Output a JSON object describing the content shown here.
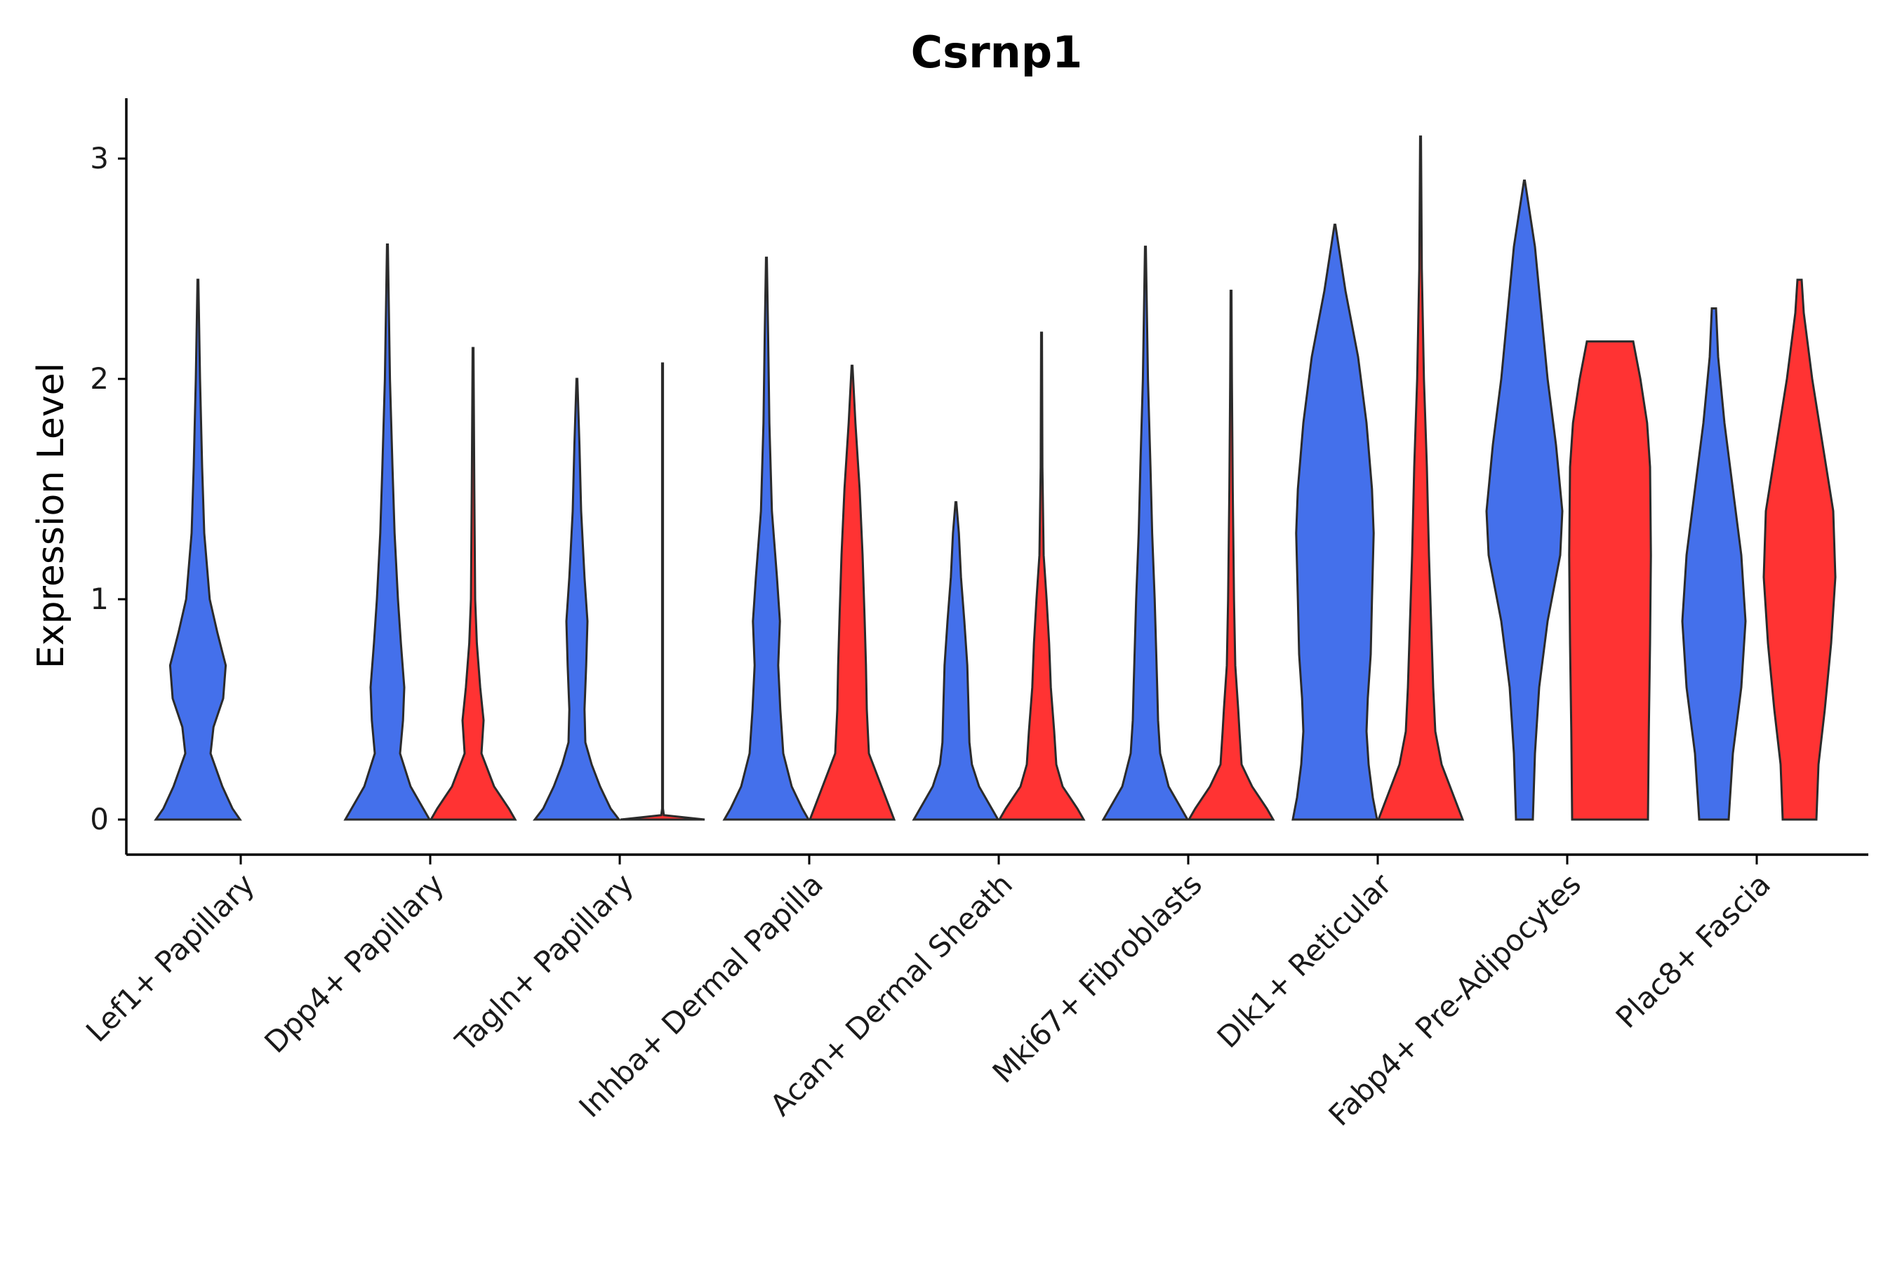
{
  "chart_data": {
    "type": "violin",
    "title": "Csrnp1",
    "xlabel": "",
    "ylabel": "Expression Level",
    "ylim": [
      -0.16,
      3.25
    ],
    "yticks": [
      0,
      1,
      2,
      3
    ],
    "grid": false,
    "legend": "none",
    "colors": {
      "blue": "#4470EB",
      "red": "#FF3333",
      "outline": "#2B2B2B"
    },
    "categories": [
      "Lef1+ Papillary",
      "Dpp4+ Papillary",
      "Tagln+ Papillary",
      "Inhba+ Dermal Papilla",
      "Acan+ Dermal Sheath",
      "Mki67+ Fibroblasts",
      "Dlk1+ Reticular",
      "Fabp4+ Pre-Adipocytes",
      "Plac8+ Fascia"
    ],
    "series": [
      {
        "name": "blue",
        "color": "#4470EB",
        "violins": [
          {
            "max": 2.45,
            "profile": [
              [
                0,
                1.0
              ],
              [
                0.05,
                0.82
              ],
              [
                0.15,
                0.58
              ],
              [
                0.3,
                0.3
              ],
              [
                0.42,
                0.37
              ],
              [
                0.55,
                0.6
              ],
              [
                0.7,
                0.66
              ],
              [
                0.85,
                0.46
              ],
              [
                1.0,
                0.28
              ],
              [
                1.3,
                0.15
              ],
              [
                1.6,
                0.1
              ],
              [
                2.0,
                0.05
              ],
              [
                2.45,
                0.0
              ]
            ]
          },
          {
            "max": 2.61,
            "profile": [
              [
                0,
                1.0
              ],
              [
                0.05,
                0.85
              ],
              [
                0.15,
                0.55
              ],
              [
                0.3,
                0.3
              ],
              [
                0.45,
                0.37
              ],
              [
                0.6,
                0.4
              ],
              [
                0.8,
                0.32
              ],
              [
                1.0,
                0.25
              ],
              [
                1.3,
                0.17
              ],
              [
                1.6,
                0.12
              ],
              [
                2.0,
                0.06
              ],
              [
                2.61,
                0.0
              ]
            ]
          },
          {
            "max": 2.0,
            "profile": [
              [
                0,
                1.0
              ],
              [
                0.05,
                0.8
              ],
              [
                0.15,
                0.55
              ],
              [
                0.25,
                0.35
              ],
              [
                0.35,
                0.2
              ],
              [
                0.5,
                0.18
              ],
              [
                0.7,
                0.22
              ],
              [
                0.9,
                0.25
              ],
              [
                1.1,
                0.18
              ],
              [
                1.4,
                0.1
              ],
              [
                1.7,
                0.06
              ],
              [
                2.0,
                0.0
              ]
            ]
          },
          {
            "max": 2.55,
            "profile": [
              [
                0,
                1.0
              ],
              [
                0.05,
                0.85
              ],
              [
                0.15,
                0.6
              ],
              [
                0.3,
                0.4
              ],
              [
                0.5,
                0.33
              ],
              [
                0.7,
                0.28
              ],
              [
                0.9,
                0.32
              ],
              [
                1.1,
                0.25
              ],
              [
                1.4,
                0.13
              ],
              [
                1.8,
                0.07
              ],
              [
                2.2,
                0.04
              ],
              [
                2.55,
                0.0
              ]
            ]
          },
          {
            "max": 1.44,
            "profile": [
              [
                0,
                1.0
              ],
              [
                0.05,
                0.85
              ],
              [
                0.15,
                0.55
              ],
              [
                0.25,
                0.38
              ],
              [
                0.35,
                0.32
              ],
              [
                0.5,
                0.3
              ],
              [
                0.7,
                0.27
              ],
              [
                0.9,
                0.2
              ],
              [
                1.1,
                0.12
              ],
              [
                1.3,
                0.07
              ],
              [
                1.44,
                0.0
              ]
            ]
          },
          {
            "max": 2.6,
            "profile": [
              [
                0,
                1.0
              ],
              [
                0.05,
                0.85
              ],
              [
                0.15,
                0.55
              ],
              [
                0.3,
                0.35
              ],
              [
                0.45,
                0.3
              ],
              [
                0.6,
                0.28
              ],
              [
                0.8,
                0.25
              ],
              [
                1.0,
                0.22
              ],
              [
                1.3,
                0.16
              ],
              [
                1.6,
                0.12
              ],
              [
                2.0,
                0.06
              ],
              [
                2.6,
                0.0
              ]
            ]
          },
          {
            "max": 2.7,
            "profile": [
              [
                0,
                1.0
              ],
              [
                0.1,
                0.9
              ],
              [
                0.25,
                0.8
              ],
              [
                0.4,
                0.75
              ],
              [
                0.55,
                0.78
              ],
              [
                0.75,
                0.85
              ],
              [
                1.0,
                0.88
              ],
              [
                1.3,
                0.92
              ],
              [
                1.5,
                0.88
              ],
              [
                1.8,
                0.75
              ],
              [
                2.1,
                0.55
              ],
              [
                2.4,
                0.25
              ],
              [
                2.7,
                0.0
              ]
            ]
          }
        ]
      },
      {
        "name": "red",
        "color": "#FF3333",
        "violins": [
          null,
          {
            "max": 2.14,
            "profile": [
              [
                0,
                1.0
              ],
              [
                0.05,
                0.85
              ],
              [
                0.15,
                0.5
              ],
              [
                0.3,
                0.2
              ],
              [
                0.45,
                0.25
              ],
              [
                0.6,
                0.17
              ],
              [
                0.8,
                0.09
              ],
              [
                1.0,
                0.05
              ],
              [
                1.5,
                0.03
              ],
              [
                2.14,
                0.0
              ]
            ]
          },
          {
            "max": 2.07,
            "profile": [
              [
                0,
                1.0
              ],
              [
                0.02,
                0.03
              ],
              [
                0.05,
                0.01
              ],
              [
                2.07,
                0.0
              ]
            ]
          },
          {
            "max": 2.06,
            "profile": [
              [
                0,
                1.0
              ],
              [
                0.05,
                0.9
              ],
              [
                0.15,
                0.7
              ],
              [
                0.3,
                0.4
              ],
              [
                0.5,
                0.35
              ],
              [
                0.7,
                0.33
              ],
              [
                0.9,
                0.3
              ],
              [
                1.2,
                0.25
              ],
              [
                1.5,
                0.18
              ],
              [
                1.8,
                0.08
              ],
              [
                2.06,
                0.0
              ]
            ]
          },
          {
            "max": 2.21,
            "profile": [
              [
                0,
                1.0
              ],
              [
                0.05,
                0.85
              ],
              [
                0.15,
                0.5
              ],
              [
                0.25,
                0.35
              ],
              [
                0.4,
                0.3
              ],
              [
                0.6,
                0.22
              ],
              [
                0.8,
                0.18
              ],
              [
                1.0,
                0.12
              ],
              [
                1.2,
                0.05
              ],
              [
                1.6,
                0.02
              ],
              [
                2.21,
                0.0
              ]
            ]
          },
          {
            "max": 2.4,
            "profile": [
              [
                0,
                1.0
              ],
              [
                0.05,
                0.85
              ],
              [
                0.15,
                0.5
              ],
              [
                0.25,
                0.25
              ],
              [
                0.4,
                0.2
              ],
              [
                0.5,
                0.17
              ],
              [
                0.7,
                0.1
              ],
              [
                1.0,
                0.07
              ],
              [
                1.5,
                0.04
              ],
              [
                2.0,
                0.02
              ],
              [
                2.4,
                0.0
              ]
            ]
          },
          {
            "max": 3.1,
            "profile": [
              [
                0,
                1.0
              ],
              [
                0.1,
                0.8
              ],
              [
                0.25,
                0.5
              ],
              [
                0.4,
                0.35
              ],
              [
                0.6,
                0.3
              ],
              [
                0.9,
                0.25
              ],
              [
                1.2,
                0.2
              ],
              [
                1.6,
                0.15
              ],
              [
                2.0,
                0.08
              ],
              [
                2.5,
                0.03
              ],
              [
                3.1,
                0.0
              ]
            ]
          }
        ]
      }
    ],
    "paired_groups": [
      {
        "category": "Fabp4+ Pre-Adipocytes",
        "blue": {
          "max": 2.9,
          "profile": [
            [
              0,
              0.2
            ],
            [
              0.3,
              0.25
            ],
            [
              0.6,
              0.35
            ],
            [
              0.9,
              0.55
            ],
            [
              1.2,
              0.85
            ],
            [
              1.4,
              0.9
            ],
            [
              1.7,
              0.75
            ],
            [
              2.0,
              0.55
            ],
            [
              2.3,
              0.4
            ],
            [
              2.6,
              0.25
            ],
            [
              2.9,
              0.0
            ]
          ]
        },
        "red": {
          "max": 2.17,
          "profile": [
            [
              0,
              0.9
            ],
            [
              0.4,
              0.92
            ],
            [
              0.8,
              0.95
            ],
            [
              1.2,
              0.97
            ],
            [
              1.6,
              0.95
            ],
            [
              1.8,
              0.88
            ],
            [
              2.0,
              0.72
            ],
            [
              2.17,
              0.55
            ]
          ]
        }
      },
      {
        "category": "Plac8+ Fascia",
        "blue": {
          "max": 2.32,
          "profile": [
            [
              0,
              0.35
            ],
            [
              0.3,
              0.45
            ],
            [
              0.6,
              0.65
            ],
            [
              0.9,
              0.75
            ],
            [
              1.2,
              0.65
            ],
            [
              1.5,
              0.45
            ],
            [
              1.8,
              0.25
            ],
            [
              2.1,
              0.1
            ],
            [
              2.32,
              0.05
            ]
          ]
        },
        "red": {
          "max": 2.45,
          "profile": [
            [
              0,
              0.4
            ],
            [
              0.25,
              0.45
            ],
            [
              0.5,
              0.6
            ],
            [
              0.8,
              0.75
            ],
            [
              1.1,
              0.85
            ],
            [
              1.4,
              0.8
            ],
            [
              1.7,
              0.55
            ],
            [
              2.0,
              0.3
            ],
            [
              2.3,
              0.1
            ],
            [
              2.45,
              0.05
            ]
          ]
        }
      }
    ]
  }
}
